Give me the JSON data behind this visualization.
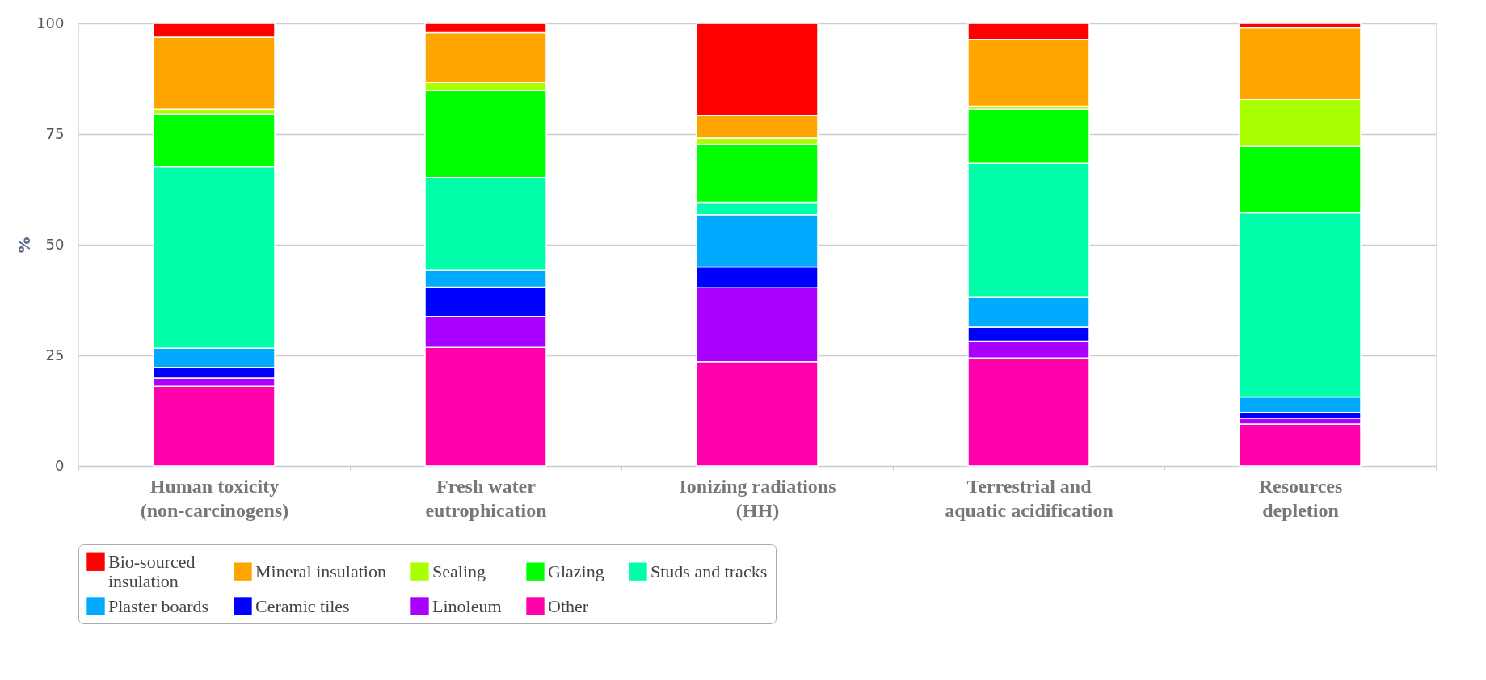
{
  "chart_data": {
    "type": "bar",
    "stacked": true,
    "ylabel": "%",
    "categories": [
      "Human toxicity\n(non-carcinogens)",
      "Fresh water\neutrophication",
      "Ionizing radiations\n(HH)",
      "Terrestrial and\naquatic acidification",
      "Resources\ndepletion"
    ],
    "series": [
      {
        "name": "Other",
        "color": "#ff00aa",
        "values": [
          18.0,
          26.8,
          23.6,
          24.4,
          9.5
        ]
      },
      {
        "name": "Linoleum",
        "color": "#aa00ff",
        "values": [
          1.9,
          7.0,
          16.7,
          3.8,
          1.3
        ]
      },
      {
        "name": "Ceramic tiles",
        "color": "#0000ff",
        "values": [
          2.3,
          6.6,
          4.7,
          3.2,
          1.3
        ]
      },
      {
        "name": "Plaster boards",
        "color": "#00aaff",
        "values": [
          4.4,
          3.9,
          11.8,
          6.7,
          3.5
        ]
      },
      {
        "name": "Studs and tracks",
        "color": "#00ffaa",
        "values": [
          41.0,
          20.9,
          2.8,
          30.3,
          41.6
        ]
      },
      {
        "name": "Glazing",
        "color": "#00ff00",
        "values": [
          11.9,
          19.6,
          13.1,
          12.2,
          15.0
        ]
      },
      {
        "name": "Sealing",
        "color": "#aaff00",
        "values": [
          1.1,
          1.9,
          1.4,
          0.7,
          10.6
        ]
      },
      {
        "name": "Mineral insulation",
        "color": "#ffa500",
        "values": [
          16.3,
          11.2,
          5.1,
          15.1,
          16.2
        ]
      },
      {
        "name": "Bio-sourced\ninsulation",
        "color": "#ff0000",
        "values": [
          3.1,
          2.1,
          20.8,
          3.6,
          1.0
        ]
      }
    ],
    "ylim": [
      0,
      100
    ],
    "yticks": [
      0,
      25,
      50,
      75,
      100
    ],
    "grid": "y",
    "legend": "bottom"
  }
}
